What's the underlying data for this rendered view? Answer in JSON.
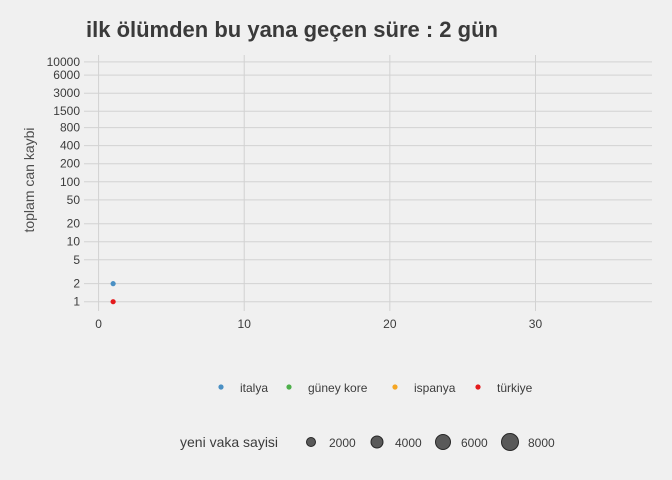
{
  "chart_data": {
    "type": "scatter",
    "title": "ilk ölümden bu yana geçen süre : 2 gün",
    "xlabel": "",
    "ylabel": "toplam can kaybi",
    "xlim": [
      -1,
      38
    ],
    "x_ticks": [
      0,
      10,
      20,
      30
    ],
    "y_scale": "log",
    "ylim": [
      0.7,
      13000
    ],
    "y_ticks": [
      1,
      2,
      5,
      10,
      20,
      50,
      100,
      200,
      400,
      800,
      1500,
      3000,
      6000,
      10000
    ],
    "grid": true,
    "legend_position": "bottom",
    "colors": {
      "background": "#f0f0f0",
      "grid": "#d2d2d2"
    },
    "series": [
      {
        "name": "italya",
        "color": "#4a90c4",
        "points": [
          {
            "x": 1,
            "y": 2
          }
        ]
      },
      {
        "name": "güney kore",
        "color": "#4daf4a",
        "points": []
      },
      {
        "name": "ispanya",
        "color": "#f5a623",
        "points": []
      },
      {
        "name": "türkiye",
        "color": "#e41a1c",
        "points": [
          {
            "x": 1,
            "y": 1
          }
        ]
      }
    ],
    "size_legend": {
      "title": "yeni vaka sayisi",
      "values": [
        2000,
        4000,
        6000,
        8000
      ]
    }
  }
}
